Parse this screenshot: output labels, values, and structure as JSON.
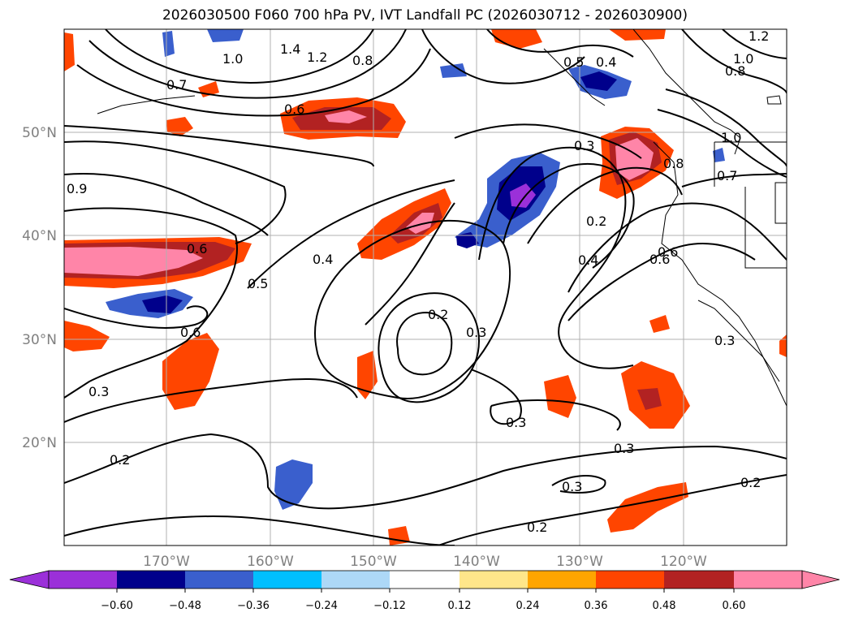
{
  "title": "2026030500 F060 700 hPa PV, IVT Landfall PC (2026030712 - 2026030900)",
  "map": {
    "lat_labels": [
      "50°N",
      "40°N",
      "30°N",
      "20°N"
    ],
    "lon_labels": [
      "170°W",
      "160°W",
      "150°W",
      "140°W",
      "130°W",
      "120°W"
    ],
    "contour_labels": [
      "1.4",
      "1.2",
      "1.0",
      "0.8",
      "0.7",
      "0.6",
      "0.6",
      "0.6",
      "0.6",
      "0.5",
      "0.4",
      "0.3",
      "0.2",
      "0.2",
      "0.3",
      "0.3",
      "0.3",
      "0.2",
      "0.2",
      "0.3",
      "0.4",
      "0.6",
      "0.7",
      "0.8",
      "1.0",
      "1.0",
      "0.8",
      "1.2",
      "0.5",
      "0.4",
      "0.3",
      "0.3",
      "0.9",
      "0.2"
    ]
  },
  "colorbar": {
    "ticks": [
      "−0.60",
      "−0.48",
      "−0.36",
      "−0.24",
      "−0.12",
      "0.12",
      "0.24",
      "0.36",
      "0.48",
      "0.60"
    ],
    "colors": [
      "#9b30d9",
      "#00008b",
      "#3a5fcd",
      "#00bfff",
      "#add8f7",
      "#ffffff",
      "#ffe68a",
      "#ffa500",
      "#ff4500",
      "#b22222",
      "#ff85a8",
      "#ff85a8"
    ]
  }
}
